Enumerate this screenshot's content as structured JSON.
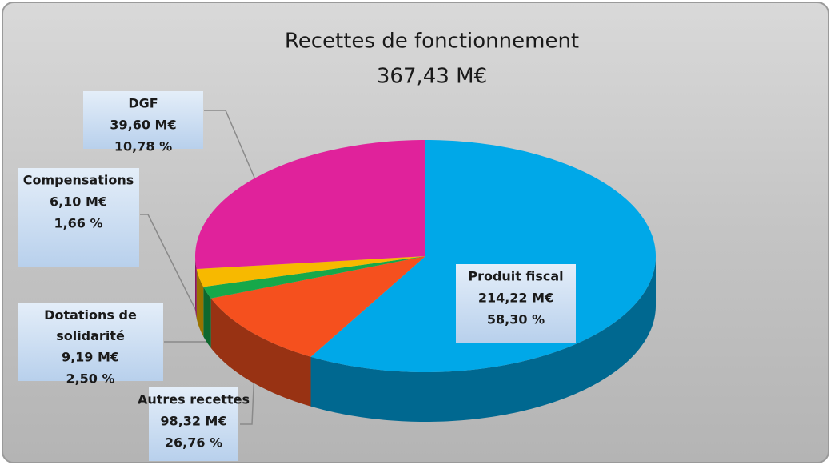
{
  "chart_data": {
    "type": "pie",
    "title": "Recettes de fonctionnement",
    "subtitle": "367,43 M€",
    "categories": [
      "Produit fiscal",
      "DGF",
      "Compensations",
      "Dotations de solidarité",
      "Autres recettes"
    ],
    "values": [
      58.3,
      10.78,
      1.66,
      2.5,
      26.76
    ],
    "value_labels": [
      "58,30 %",
      "10,78 %",
      "1,66 %",
      "2,50 %",
      "26,76 %"
    ],
    "amounts": [
      214.22,
      39.6,
      6.1,
      9.19,
      98.32
    ],
    "amount_labels": [
      "214,22 M€",
      "39,60 M€",
      "6,10 M€",
      "9,19 M€",
      "98,32 M€"
    ],
    "colors": [
      "#00a8e8",
      "#f5501e",
      "#16a84a",
      "#f7b900",
      "#e0229b"
    ]
  }
}
